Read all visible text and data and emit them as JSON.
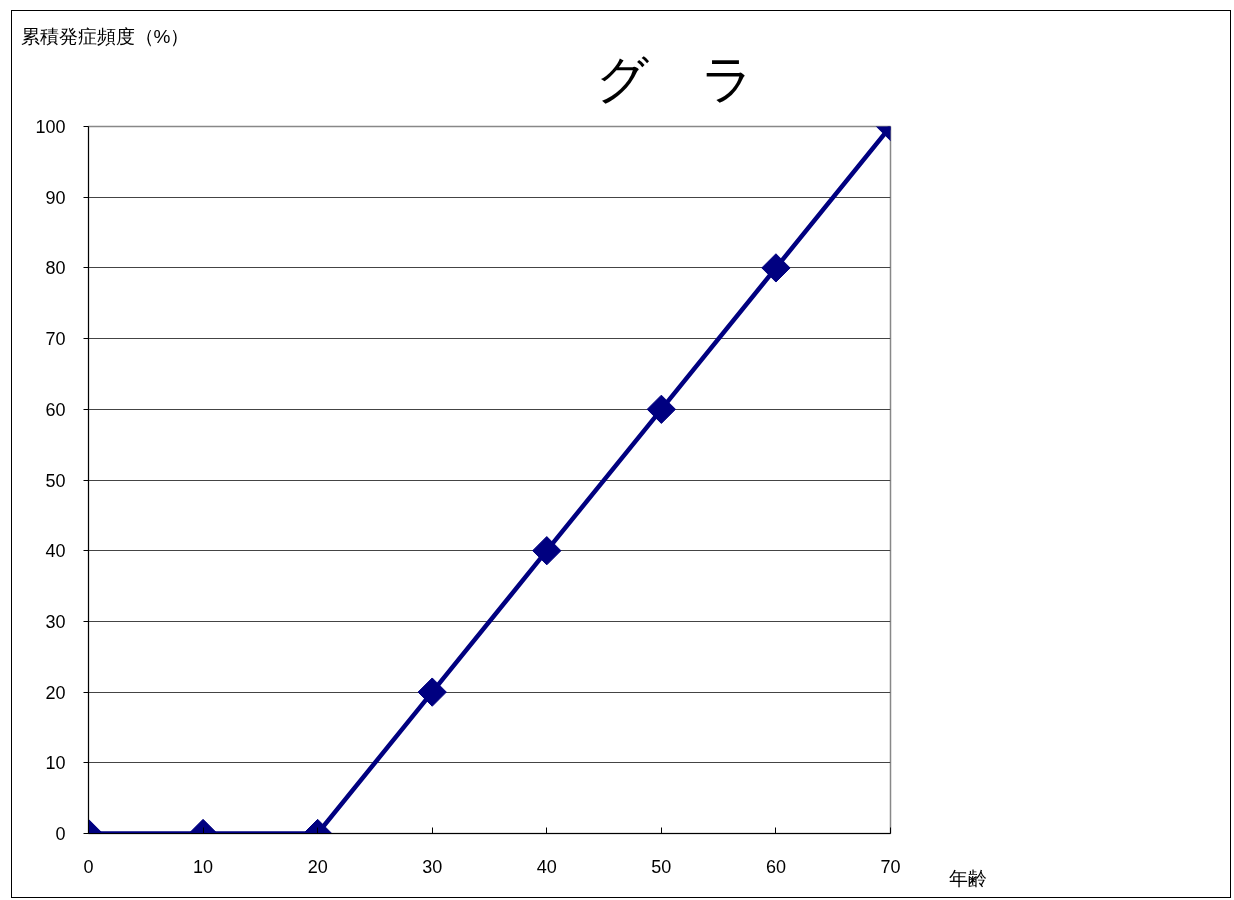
{
  "chart_data": {
    "type": "line",
    "title": "グ　ラ",
    "xlabel": "年齢",
    "ylabel": "累積発症頻度（%）",
    "x": [
      0,
      10,
      20,
      30,
      40,
      50,
      60,
      70
    ],
    "series": [
      {
        "color": "#000080",
        "values": [
          0,
          0,
          0,
          20,
          40,
          60,
          80,
          100
        ]
      }
    ],
    "xlim": [
      0,
      70
    ],
    "ylim": [
      0,
      100
    ],
    "xticks": [
      0,
      10,
      20,
      30,
      40,
      50,
      60,
      70
    ],
    "yticks": [
      0,
      10,
      20,
      30,
      40,
      50,
      60,
      70,
      80,
      90,
      100
    ],
    "grid": "y",
    "marker": "diamond",
    "line_style": "solid"
  }
}
